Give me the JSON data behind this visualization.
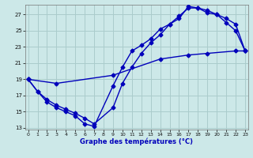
{
  "xlabel": "Graphe des températures (°C)",
  "bg_color": "#cce8e8",
  "grid_color": "#aacccc",
  "line_color": "#0000bb",
  "xlim_min": -0.3,
  "xlim_max": 23.3,
  "ylim_min": 12.8,
  "ylim_max": 28.2,
  "yticks": [
    13,
    15,
    17,
    19,
    21,
    23,
    25,
    27
  ],
  "xticks": [
    0,
    1,
    2,
    3,
    4,
    5,
    6,
    7,
    8,
    9,
    10,
    11,
    12,
    13,
    14,
    15,
    16,
    17,
    18,
    19,
    20,
    21,
    22,
    23
  ],
  "curve1_x": [
    0,
    1,
    2,
    3,
    4,
    5,
    6,
    7,
    9,
    10,
    11,
    12,
    13,
    14,
    15,
    16,
    17,
    18,
    19,
    20,
    21,
    22,
    23
  ],
  "curve1_y": [
    19.0,
    17.5,
    16.2,
    15.5,
    15.0,
    14.5,
    13.5,
    13.2,
    18.2,
    20.5,
    22.5,
    23.2,
    24.0,
    25.2,
    25.8,
    26.8,
    27.8,
    27.8,
    27.2,
    27.0,
    26.5,
    25.8,
    22.5
  ],
  "curve2_x": [
    0,
    1,
    2,
    3,
    4,
    5,
    6,
    7,
    9,
    10,
    11,
    12,
    13,
    14,
    15,
    16,
    17,
    18,
    19,
    20,
    21,
    22,
    23
  ],
  "curve2_y": [
    19.0,
    17.5,
    16.5,
    15.8,
    15.3,
    14.8,
    14.2,
    13.5,
    15.5,
    18.5,
    20.5,
    22.2,
    23.5,
    24.5,
    25.8,
    26.5,
    28.0,
    27.8,
    27.5,
    27.0,
    26.0,
    25.0,
    22.5
  ],
  "curve3_x": [
    0,
    3,
    9,
    14,
    17,
    19,
    22,
    23
  ],
  "curve3_y": [
    19.0,
    18.5,
    19.5,
    21.5,
    22.0,
    22.2,
    22.5,
    22.5
  ],
  "markersize": 2.5,
  "linewidth": 1.0
}
